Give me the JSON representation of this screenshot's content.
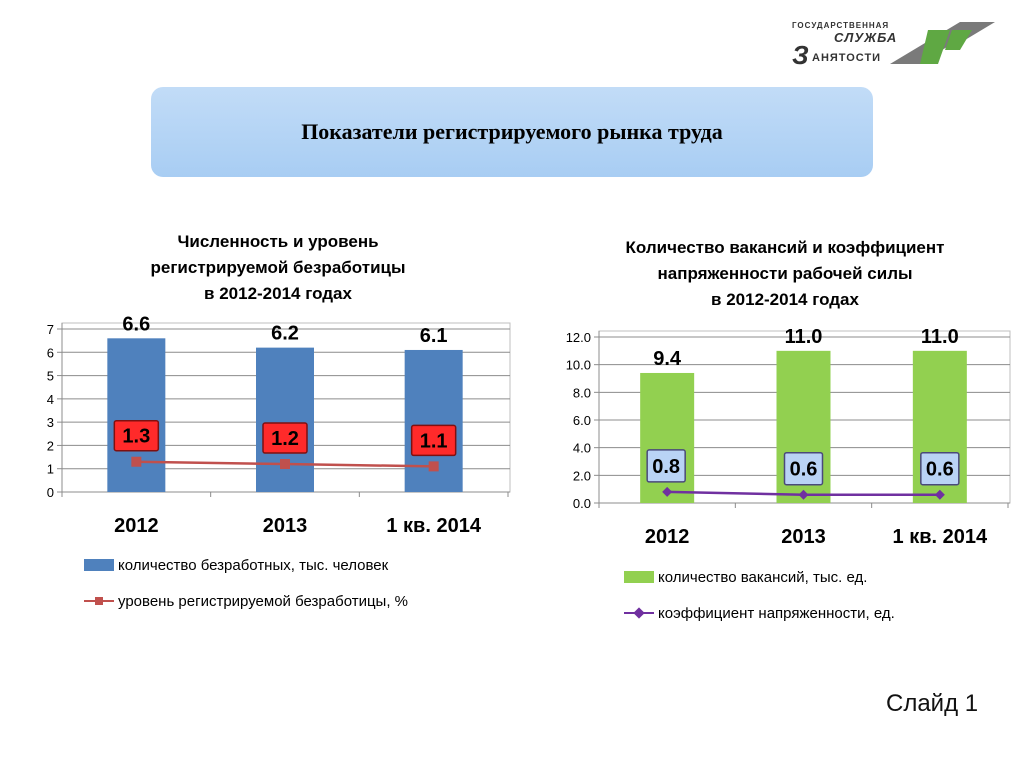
{
  "logo": {
    "line1": "ГОСУДАРСТВЕННАЯ",
    "line2": "СЛУЖБА",
    "line3z": "З",
    "line3": "АНЯТОСТИ"
  },
  "header": {
    "title": "Показатели регистрируемого рынка труда"
  },
  "charts": {
    "left": {
      "title_lines": [
        "Численность и уровень",
        "регистрируемой безработицы",
        "в 2012-2014 годах"
      ]
    },
    "right": {
      "title_lines": [
        "Количество вакансий и коэффициент",
        "напряженности рабочей силы",
        "в 2012-2014 годах"
      ]
    }
  },
  "chart_data": [
    {
      "type": "bar",
      "title": "Численность и уровень регистрируемой безработицы в 2012-2014 годах",
      "categories": [
        "2012",
        "2013",
        "1 кв. 2014"
      ],
      "ylim": [
        0,
        7
      ],
      "yticks": [
        "0",
        "1",
        "2",
        "3",
        "4",
        "5",
        "6",
        "7"
      ],
      "grid": true,
      "legend_position": "bottom",
      "series": [
        {
          "name": "количество безработных, тыс. человек",
          "kind": "bar",
          "color": "#4f81bd",
          "values": [
            6.6,
            6.2,
            6.1
          ],
          "labels": [
            "6.6",
            "6.2",
            "6.1"
          ]
        },
        {
          "name": "уровень регистрируемой безработицы, %",
          "kind": "line",
          "color": "#c0504d",
          "marker": "square",
          "values": [
            1.3,
            1.2,
            1.1
          ],
          "labels": [
            "1.3",
            "1.2",
            "1.1"
          ],
          "label_bg": "#ff2a2a"
        }
      ]
    },
    {
      "type": "bar",
      "title": "Количество вакансий и коэффициент напряженности рабочей силы в 2012-2014 годах",
      "categories": [
        "2012",
        "2013",
        "1 кв. 2014"
      ],
      "ylim": [
        0,
        12
      ],
      "yticks": [
        "0.0",
        "2.0",
        "4.0",
        "6.0",
        "8.0",
        "10.0",
        "12.0"
      ],
      "grid": true,
      "legend_position": "bottom",
      "series": [
        {
          "name": "количество вакансий, тыс. ед.",
          "kind": "bar",
          "color": "#92d050",
          "values": [
            9.4,
            11.0,
            11.0
          ],
          "labels": [
            "9.4",
            "11.0",
            "11.0"
          ]
        },
        {
          "name": "коэффициент напряженности, ед.",
          "kind": "line",
          "color": "#7030a0",
          "marker": "diamond",
          "values": [
            0.8,
            0.6,
            0.6
          ],
          "labels": [
            "0.8",
            "0.6",
            "0.6"
          ],
          "label_bg": "#b9d3f5"
        }
      ]
    }
  ],
  "footer": {
    "slide": "Слайд 1"
  }
}
